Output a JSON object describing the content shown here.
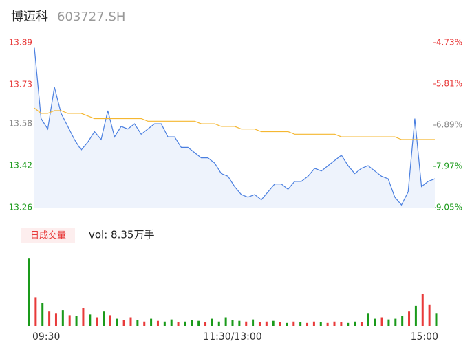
{
  "header": {
    "name": "博迈科",
    "code": "603727.SH"
  },
  "chart_data": [
    {
      "type": "line",
      "ylim": [
        13.26,
        13.89
      ],
      "yticks": [
        13.26,
        13.42,
        13.58,
        13.73,
        13.89
      ],
      "y2lim": [
        -9.05,
        -4.73
      ],
      "y2ticks": [
        {
          "value": -9.05,
          "label": "-9.05%"
        },
        {
          "value": -7.97,
          "label": "-7.97%"
        },
        {
          "value": -6.89,
          "label": "-6.89%"
        },
        {
          "value": -5.81,
          "label": "-5.81%"
        },
        {
          "value": -4.73,
          "label": "-4.73%"
        }
      ],
      "up_color": "#e83a3a",
      "down_color": "#1a9a1a",
      "flat_color": "#888888",
      "series": [
        {
          "color": "#4a7fe0",
          "fill": "#eef3fc",
          "values": [
            13.87,
            13.6,
            13.56,
            13.72,
            13.62,
            13.57,
            13.52,
            13.48,
            13.51,
            13.55,
            13.52,
            13.63,
            13.53,
            13.57,
            13.56,
            13.58,
            13.54,
            13.56,
            13.58,
            13.58,
            13.53,
            13.53,
            13.49,
            13.49,
            13.47,
            13.45,
            13.45,
            13.43,
            13.39,
            13.38,
            13.34,
            13.31,
            13.3,
            13.31,
            13.29,
            13.32,
            13.35,
            13.35,
            13.33,
            13.36,
            13.36,
            13.38,
            13.41,
            13.4,
            13.42,
            13.44,
            13.46,
            13.42,
            13.39,
            13.41,
            13.42,
            13.4,
            13.38,
            13.37,
            13.3,
            13.27,
            13.32,
            13.6,
            13.34,
            13.36,
            13.37
          ]
        },
        {
          "color": "#f5b731",
          "values": [
            13.64,
            13.62,
            13.62,
            13.63,
            13.63,
            13.62,
            13.62,
            13.62,
            13.61,
            13.6,
            13.6,
            13.6,
            13.6,
            13.6,
            13.6,
            13.6,
            13.6,
            13.59,
            13.59,
            13.59,
            13.59,
            13.59,
            13.59,
            13.59,
            13.59,
            13.58,
            13.58,
            13.58,
            13.57,
            13.57,
            13.57,
            13.56,
            13.56,
            13.56,
            13.55,
            13.55,
            13.55,
            13.55,
            13.55,
            13.54,
            13.54,
            13.54,
            13.54,
            13.54,
            13.54,
            13.54,
            13.53,
            13.53,
            13.53,
            13.53,
            13.53,
            13.53,
            13.53,
            13.53,
            13.53,
            13.52,
            13.52,
            13.52,
            13.52,
            13.52,
            13.52
          ]
        }
      ]
    },
    {
      "type": "bar",
      "title": "日成交量",
      "subtitle": "vol: 8.35万手",
      "ylim": [
        0,
        100
      ],
      "xlim": [
        0,
        60
      ],
      "xticks": [
        {
          "value": 0,
          "label": "09:30"
        },
        {
          "value": 30,
          "label": "11:30/13:00"
        },
        {
          "value": 60,
          "label": "15:00"
        }
      ],
      "values": [
        95,
        40,
        32,
        20,
        18,
        22,
        15,
        14,
        25,
        16,
        12,
        20,
        15,
        10,
        8,
        12,
        8,
        6,
        10,
        7,
        6,
        9,
        5,
        6,
        8,
        7,
        5,
        10,
        6,
        12,
        8,
        7,
        6,
        9,
        5,
        6,
        7,
        5,
        4,
        6,
        5,
        4,
        6,
        5,
        4,
        6,
        5,
        4,
        6,
        5,
        18,
        10,
        12,
        9,
        10,
        14,
        20,
        28,
        45,
        30,
        18
      ],
      "colors": [
        "#1a9a1a",
        "#e83a3a",
        "#1a9a1a",
        "#e83a3a",
        "#e83a3a",
        "#1a9a1a",
        "#e83a3a",
        "#1a9a1a",
        "#e83a3a",
        "#1a9a1a",
        "#e83a3a",
        "#1a9a1a",
        "#e83a3a",
        "#1a9a1a",
        "#e83a3a",
        "#e83a3a",
        "#1a9a1a",
        "#e83a3a",
        "#1a9a1a",
        "#e83a3a",
        "#1a9a1a",
        "#1a9a1a",
        "#e83a3a",
        "#1a9a1a",
        "#1a9a1a",
        "#1a9a1a",
        "#e83a3a",
        "#1a9a1a",
        "#1a9a1a",
        "#1a9a1a",
        "#1a9a1a",
        "#1a9a1a",
        "#e83a3a",
        "#1a9a1a",
        "#e83a3a",
        "#e83a3a",
        "#1a9a1a",
        "#e83a3a",
        "#1a9a1a",
        "#e83a3a",
        "#1a9a1a",
        "#e83a3a",
        "#e83a3a",
        "#1a9a1a",
        "#e83a3a",
        "#e83a3a",
        "#e83a3a",
        "#1a9a1a",
        "#1a9a1a",
        "#e83a3a",
        "#1a9a1a",
        "#1a9a1a",
        "#e83a3a",
        "#1a9a1a",
        "#1a9a1a",
        "#1a9a1a",
        "#e83a3a",
        "#1a9a1a",
        "#e83a3a",
        "#e83a3a",
        "#1a9a1a"
      ]
    }
  ]
}
